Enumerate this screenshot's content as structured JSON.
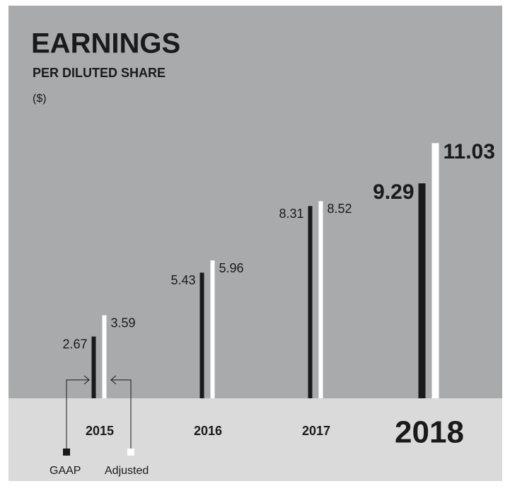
{
  "chart_data": {
    "type": "bar",
    "title": "EARNINGS",
    "subtitle": "PER DILUTED SHARE",
    "unit_label": "($)",
    "categories": [
      "2015",
      "2016",
      "2017",
      "2018"
    ],
    "series": [
      {
        "name": "GAAP",
        "color": "#1a1a1a",
        "values": [
          2.67,
          5.43,
          8.31,
          9.29
        ]
      },
      {
        "name": "Adjusted",
        "color": "#ffffff",
        "values": [
          3.59,
          5.96,
          8.52,
          11.03
        ]
      }
    ]
  }
}
